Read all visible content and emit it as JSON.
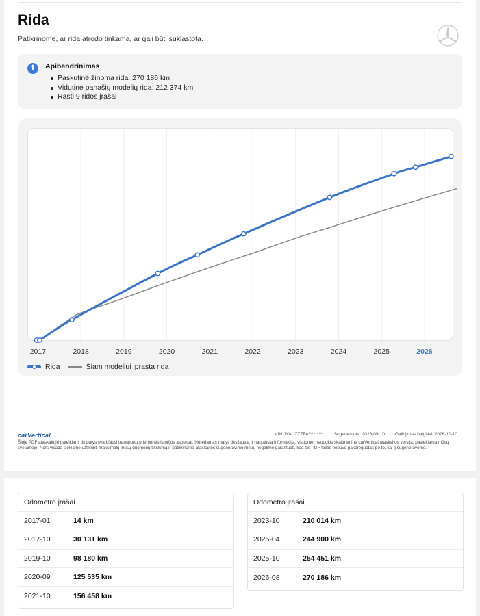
{
  "header": {
    "title": "Rida",
    "subtitle": "Patikrinome, ar rida atrodo tinkama, ar gali būti suklastota."
  },
  "summary": {
    "title": "Apibendrinimas",
    "items": [
      "Paskutinė žinoma rida: 270 186 km",
      "Vidutinė panašių modelių rida: 212 374 km",
      "Rasti 9 ridos įrašai"
    ]
  },
  "chart_data": {
    "type": "line",
    "xlabel": "",
    "ylabel": "",
    "x_ticks": [
      "2017",
      "2018",
      "2019",
      "2020",
      "2021",
      "2022",
      "2023",
      "2024",
      "2025",
      "2026"
    ],
    "highlighted_tick": "2026",
    "xlim": [
      2016.85,
      2026.75
    ],
    "ylim": [
      0,
      290000
    ],
    "grid": "vertical",
    "legend_placement": "bottom-left",
    "series": [
      {
        "name": "Rida",
        "color": "#3b72c9",
        "style": "solid-with-markers",
        "points": [
          {
            "x": 2016.97,
            "y": 0
          },
          {
            "x": 2017.04,
            "y": 14
          },
          {
            "x": 2017.79,
            "y": 30131
          },
          {
            "x": 2019.79,
            "y": 98180
          },
          {
            "x": 2020.71,
            "y": 125535
          },
          {
            "x": 2021.79,
            "y": 156458
          },
          {
            "x": 2023.79,
            "y": 210014
          },
          {
            "x": 2025.29,
            "y": 244900
          },
          {
            "x": 2025.79,
            "y": 254451
          },
          {
            "x": 2026.62,
            "y": 270186
          }
        ]
      },
      {
        "name": "Šiam modeliui įprasta rida",
        "color": "#888888",
        "style": "solid",
        "points": [
          {
            "x": 2017.04,
            "y": 0
          },
          {
            "x": 2017.79,
            "y": 33000
          },
          {
            "x": 2018.0,
            "y": 40000
          },
          {
            "x": 2019.0,
            "y": 62000
          },
          {
            "x": 2020.0,
            "y": 85000
          },
          {
            "x": 2021.0,
            "y": 107000
          },
          {
            "x": 2022.0,
            "y": 128000
          },
          {
            "x": 2023.0,
            "y": 150000
          },
          {
            "x": 2024.0,
            "y": 170000
          },
          {
            "x": 2025.0,
            "y": 190000
          },
          {
            "x": 2026.0,
            "y": 209000
          },
          {
            "x": 2026.75,
            "y": 223000
          }
        ]
      }
    ]
  },
  "footer": {
    "brand": "carVertical",
    "vin": "VIN: WAUZZZF4*********",
    "generated": "Sugeneruota: 2026-09-10",
    "expires": "Galiojimas baigiasi: 2026-10-10",
    "disclaimer": "Šioje PDF ataskaitoje pateikiami tik patys svarbiausi transporto priemonės istorijos aspektai. Norėdamas matyti tiksliausią ir naujausią informaciją, visuomet naudokis skaitmenine carVertical ataskaitos versija, pasiekiama mūsų svetainėje. Nors visada siekiame užtikrinti maksimalų mūsų duomenų tikslumą ir patikrinamą ataskaitos sugeneravimo metu, negalime garantuoti, kad šis PDF failas nebuvo pakoreguotas po to, kai jį sugeneravome."
  },
  "odometer": {
    "left": {
      "title": "Odometro įrašai",
      "rows": [
        {
          "date": "2017-01",
          "km": "14 km"
        },
        {
          "date": "2017-10",
          "km": "30 131 km"
        },
        {
          "date": "2019-10",
          "km": "98 180 km"
        },
        {
          "date": "2020-09",
          "km": "125 535 km"
        },
        {
          "date": "2021-10",
          "km": "156 458 km"
        }
      ]
    },
    "right": {
      "title": "Odometro įrašai",
      "rows": [
        {
          "date": "2023-10",
          "km": "210 014 km"
        },
        {
          "date": "2025-04",
          "km": "244 900 km"
        },
        {
          "date": "2025-10",
          "km": "254 451 km"
        },
        {
          "date": "2026-08",
          "km": "270 186 km"
        }
      ]
    }
  }
}
